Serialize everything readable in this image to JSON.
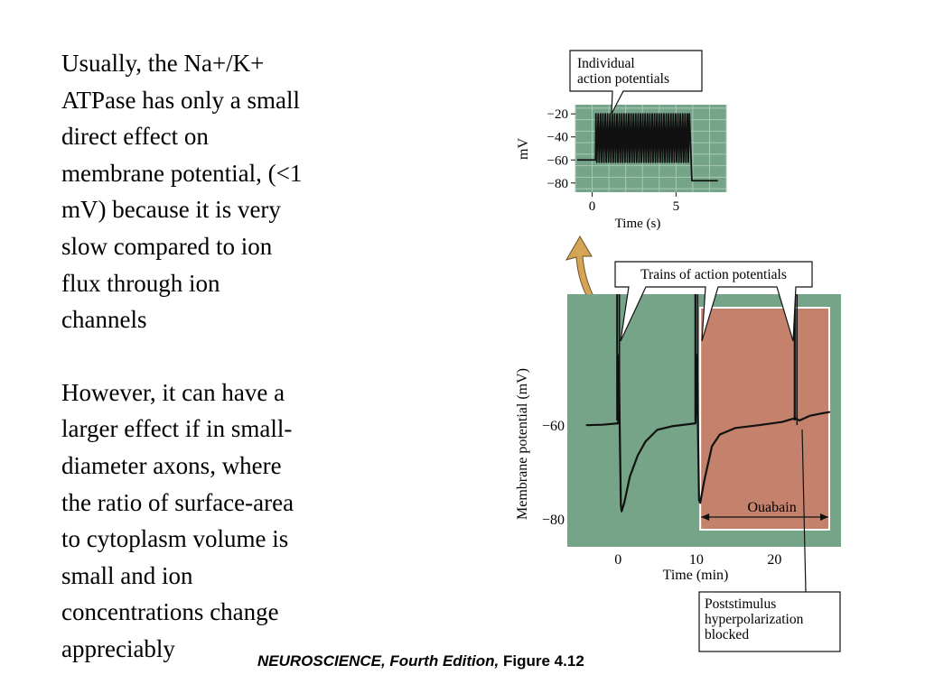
{
  "slide": {
    "paragraph_1": "Usually, the Na+/K+\nATPase has only a small\ndirect effect on\nmembrane potential, (<1\nmV) because it is very\nslow compared to ion\nflux through ion\nchannels",
    "paragraph_2": "However, it can have a\nlarger effect if in small-\ndiameter axons, where\nthe ratio of surface-area\nto cytoplasm volume is\nsmall and ion\nconcentrations change\nappreciably"
  },
  "credit": {
    "book": "NEUROSCIENCE, Fourth Edition,",
    "figure": "Figure 4.12"
  },
  "colors": {
    "plot_green": "#75a489",
    "ouabain_fill": "#c4826d",
    "arrow_fill": "#d6a456",
    "grid_line": "#a9c9b5"
  },
  "chart_data": [
    {
      "type": "line",
      "xlabel": "Time (s)",
      "ylabel": "mV",
      "x_ticks": [
        0,
        5
      ],
      "y_ticks": [
        -20,
        -40,
        -60,
        -80
      ],
      "y_tick_labels": [
        "−20",
        "−40",
        "−60",
        "−80"
      ],
      "xlim": [
        -1,
        8
      ],
      "ylim": [
        -88,
        -12
      ],
      "grid": true,
      "callout": "Individual\naction potentials",
      "trace": {
        "rest_mv": -60,
        "train_start_s": 0.2,
        "train_end_s": 5.8,
        "spike_peak_mv": -20,
        "spike_trough_mv": -62,
        "spike_count": 40,
        "after_mv": -78,
        "end_s": 7.5
      }
    },
    {
      "type": "line",
      "xlabel": "Time (min)",
      "ylabel": "Membrane potential (mV)",
      "x_ticks": [
        0,
        10,
        20
      ],
      "y_ticks": [
        -60,
        -80
      ],
      "y_tick_labels": [
        "−60",
        "−80"
      ],
      "xlim": [
        -6.5,
        28.5
      ],
      "ylim": [
        -86,
        -32
      ],
      "grid": false,
      "callouts": {
        "trains": "Trains of action potentials",
        "poststimulus": "Poststimulus\nhyperpolarization\nblocked"
      },
      "ouabain": {
        "label": "Ouabain",
        "start_min": 10.5,
        "end_min": 27
      },
      "trace": [
        [
          -4,
          -60
        ],
        [
          -2,
          -59.9
        ],
        [
          0,
          -59.6
        ],
        [
          0.1,
          -45
        ],
        [
          0.2,
          -60
        ],
        [
          0.35,
          -77
        ],
        [
          0.45,
          -78.4
        ],
        [
          0.8,
          -76.5
        ],
        [
          1.5,
          -71
        ],
        [
          2.5,
          -66.5
        ],
        [
          3.5,
          -63.5
        ],
        [
          5,
          -61
        ],
        [
          7,
          -60.2
        ],
        [
          9.9,
          -59.6
        ],
        [
          10.1,
          -45
        ],
        [
          10.2,
          -60
        ],
        [
          10.35,
          -76
        ],
        [
          10.5,
          -76.6
        ],
        [
          11,
          -72
        ],
        [
          12,
          -64.5
        ],
        [
          13,
          -62
        ],
        [
          15,
          -60.6
        ],
        [
          18,
          -60
        ],
        [
          21,
          -59.3
        ],
        [
          22.6,
          -58.5
        ],
        [
          23.2,
          -59
        ],
        [
          24.5,
          -58
        ],
        [
          26,
          -57.5
        ],
        [
          27,
          -57.2
        ]
      ],
      "spike_trains_min": [
        0,
        10,
        22.7
      ],
      "spike_peak_mv": -32
    }
  ]
}
